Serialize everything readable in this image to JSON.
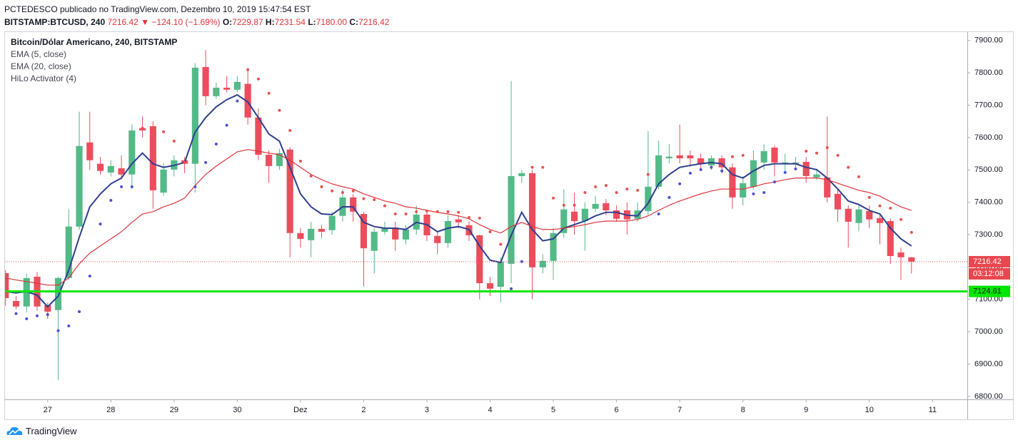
{
  "header": {
    "line1": "PCTEDESCO publicado no TradingView.com, Dezembro 10, 2019 15:47:54 EST",
    "symbol": "BITSTAMP:BTCUSD, 240",
    "last": "7216.42",
    "change": "▼ −124.10 (−1.69%)",
    "o_label": "O:",
    "o": "7229.87",
    "h_label": "H:",
    "h": "7231.54",
    "l_label": "L:",
    "l": "7180.00",
    "c_label": "C:",
    "c": "7216.42"
  },
  "footer": {
    "brand": "TradingView"
  },
  "chart_data": {
    "type": "candlestick",
    "title": "Bitcoin/Dólar Americano, 240, BITSTAMP",
    "up_color": "#53b987",
    "down_color": "#eb4d5c",
    "open": [
      7181,
      7095,
      7078,
      7170,
      7082,
      7067,
      7166,
      7325,
      7585,
      7519,
      7492,
      7505,
      7486,
      7629,
      7635,
      7430,
      7501,
      7530,
      7519,
      7818,
      7728,
      7754,
      7748,
      7766,
      7662,
      7547,
      7512,
      7563,
      7305,
      7283,
      7318,
      7314,
      7358,
      7415,
      7364,
      7250,
      7309,
      7322,
      7285,
      7316,
      7362,
      7296,
      7274,
      7347,
      7329,
      7298,
      7150,
      7139,
      7210,
      7481,
      7490,
      7199,
      7219,
      7305,
      7371,
      7342,
      7380,
      7397,
      7375,
      7375,
      7349,
      7373,
      7448,
      7536,
      7545,
      7545,
      7536,
      7514,
      7536,
      7508,
      7415,
      7448,
      7523,
      7569,
      7519,
      7519,
      7525,
      7477,
      7477,
      7426,
      7380,
      7336,
      7373,
      7351,
      7342,
      7245,
      7229.87
    ],
    "high": [
      7190,
      7110,
      7180,
      7185,
      7090,
      7170,
      7380,
      7680,
      7680,
      7540,
      7530,
      7545,
      7640,
      7665,
      7650,
      7520,
      7545,
      7540,
      7830,
      7870,
      7770,
      7790,
      7790,
      7810,
      7690,
      7560,
      7565,
      7570,
      7320,
      7340,
      7330,
      7370,
      7440,
      7425,
      7370,
      7320,
      7340,
      7340,
      7330,
      7390,
      7370,
      7310,
      7360,
      7360,
      7340,
      7300,
      7170,
      7230,
      7775,
      7500,
      7500,
      7240,
      7320,
      7440,
      7430,
      7400,
      7420,
      7410,
      7390,
      7400,
      7400,
      7620,
      7590,
      7580,
      7640,
      7560,
      7550,
      7545,
      7545,
      7520,
      7480,
      7560,
      7580,
      7575,
      7550,
      7540,
      7540,
      7500,
      7665,
      7440,
      7390,
      7390,
      7390,
      7360,
      7350,
      7260,
      7231.54
    ],
    "low": [
      7080,
      7070,
      7060,
      7065,
      7040,
      6851,
      7160,
      7315,
      7500,
      7485,
      7480,
      7470,
      7440,
      7600,
      7380,
      7420,
      7480,
      7490,
      7430,
      7700,
      7720,
      7740,
      7740,
      7640,
      7530,
      7460,
      7500,
      7230,
      7260,
      7230,
      7290,
      7300,
      7340,
      7340,
      7140,
      7180,
      7300,
      7250,
      7270,
      7300,
      7280,
      7240,
      7260,
      7320,
      7280,
      7100,
      7110,
      7090,
      7150,
      7460,
      7100,
      7180,
      7160,
      7290,
      7300,
      7250,
      7370,
      7360,
      7340,
      7300,
      7340,
      7360,
      7440,
      7520,
      7520,
      7510,
      7500,
      7500,
      7490,
      7380,
      7390,
      7440,
      7500,
      7480,
      7490,
      7500,
      7460,
      7470,
      7400,
      7340,
      7260,
      7310,
      7320,
      7270,
      7210,
      7160,
      7180
    ],
    "close": [
      7104,
      7078,
      7166,
      7078,
      7062,
      7166,
      7325,
      7574,
      7530,
      7497,
      7512,
      7486,
      7622,
      7622,
      7437,
      7501,
      7530,
      7519,
      7816,
      7728,
      7754,
      7748,
      7772,
      7662,
      7547,
      7512,
      7552,
      7305,
      7287,
      7318,
      7309,
      7358,
      7415,
      7371,
      7258,
      7309,
      7320,
      7285,
      7316,
      7362,
      7298,
      7274,
      7342,
      7338,
      7298,
      7150,
      7133,
      7217,
      7481,
      7490,
      7199,
      7219,
      7305,
      7378,
      7342,
      7380,
      7395,
      7375,
      7349,
      7347,
      7375,
      7448,
      7545,
      7541,
      7536,
      7536,
      7519,
      7536,
      7508,
      7415,
      7459,
      7530,
      7558,
      7523,
      7523,
      7523,
      7481,
      7486,
      7415,
      7378,
      7340,
      7378,
      7347,
      7336,
      7234,
      7230,
      7216.42
    ],
    "series": [
      {
        "name": "EMA (5, close)",
        "color": "#2e3f8e",
        "values": [
          7124,
          7120,
          7124,
          7113,
          7077,
          7110,
          7190,
          7292,
          7386,
          7426,
          7457,
          7475,
          7519,
          7552,
          7519,
          7508,
          7514,
          7523,
          7617,
          7662,
          7695,
          7717,
          7732,
          7710,
          7662,
          7611,
          7589,
          7508,
          7426,
          7386,
          7364,
          7362,
          7386,
          7386,
          7338,
          7325,
          7320,
          7320,
          7316,
          7338,
          7331,
          7309,
          7320,
          7325,
          7316,
          7265,
          7221,
          7214,
          7298,
          7369,
          7316,
          7281,
          7287,
          7320,
          7331,
          7342,
          7358,
          7369,
          7369,
          7360,
          7358,
          7397,
          7457,
          7486,
          7508,
          7514,
          7519,
          7523,
          7519,
          7486,
          7475,
          7497,
          7514,
          7519,
          7519,
          7519,
          7508,
          7501,
          7475,
          7441,
          7404,
          7393,
          7375,
          7364,
          7320,
          7287,
          7265
        ]
      },
      {
        "name": "EMA (20, close)",
        "color": "#e0333b",
        "values": [
          7166,
          7160,
          7155,
          7150,
          7144,
          7144,
          7166,
          7210,
          7243,
          7265,
          7287,
          7309,
          7338,
          7364,
          7371,
          7386,
          7397,
          7413,
          7452,
          7486,
          7512,
          7534,
          7556,
          7563,
          7558,
          7552,
          7547,
          7530,
          7508,
          7486,
          7470,
          7457,
          7448,
          7441,
          7426,
          7415,
          7404,
          7397,
          7386,
          7382,
          7375,
          7369,
          7364,
          7358,
          7349,
          7331,
          7316,
          7305,
          7325,
          7338,
          7325,
          7316,
          7316,
          7320,
          7325,
          7331,
          7338,
          7342,
          7342,
          7342,
          7347,
          7358,
          7375,
          7391,
          7404,
          7415,
          7426,
          7435,
          7441,
          7441,
          7441,
          7448,
          7457,
          7463,
          7470,
          7475,
          7475,
          7475,
          7470,
          7459,
          7448,
          7437,
          7430,
          7419,
          7402,
          7386,
          7375
        ]
      },
      {
        "name": "HiLo Activator (4)",
        "color_below": "#4b50d6",
        "color_above": "#e8524f",
        "values": [
          null,
          7056,
          7040,
          7049,
          7053,
          7003,
          7018,
          7062,
          7172,
          7333,
          7406,
          7448,
          7448,
          7629,
          7629,
          7618,
          7589,
          7523,
          7448,
          7523,
          7580,
          7638,
          7713,
          7810,
          7781,
          7737,
          7684,
          7622,
          7527,
          7481,
          7448,
          7435,
          7430,
          7435,
          7411,
          7408,
          7389,
          7364,
          7364,
          7371,
          7373,
          7371,
          7371,
          7369,
          7353,
          7351,
          7309,
          7270,
          7133,
          7217,
          7508,
          7508,
          7413,
          7391,
          7391,
          7430,
          7448,
          7452,
          7430,
          7441,
          7437,
          7486,
          7364,
          7415,
          7457,
          7490,
          7501,
          7508,
          7497,
          7541,
          7545,
          7426,
          7430,
          7463,
          7492,
          7503,
          7558,
          7552,
          7569,
          7545,
          7508,
          7479,
          7415,
          7389,
          7382,
          7347,
          7307
        ]
      }
    ],
    "hline": {
      "value": 7124.61,
      "color": "#00e600"
    },
    "countdown": "03:12:08",
    "xlim": [
      -0.05,
      91.3
    ],
    "xticks": [
      {
        "value": 4,
        "label": "27"
      },
      {
        "value": 10,
        "label": "28"
      },
      {
        "value": 16,
        "label": "29"
      },
      {
        "value": 22,
        "label": "30"
      },
      {
        "value": 28,
        "label": "Dez"
      },
      {
        "value": 34,
        "label": "2"
      },
      {
        "value": 40,
        "label": "3"
      },
      {
        "value": 46,
        "label": "4"
      },
      {
        "value": 52,
        "label": "5"
      },
      {
        "value": 58,
        "label": "6"
      },
      {
        "value": 64,
        "label": "7"
      },
      {
        "value": 70,
        "label": "8"
      },
      {
        "value": 76,
        "label": "9"
      },
      {
        "value": 82,
        "label": "10"
      },
      {
        "value": 88,
        "label": "11"
      }
    ],
    "ylim": [
      6791,
      7926
    ],
    "yticks": [
      {
        "value": 6800,
        "label": "6800.00"
      },
      {
        "value": 6900,
        "label": "6900.00"
      },
      {
        "value": 7000,
        "label": "7000.00"
      },
      {
        "value": 7100,
        "label": "7100.00"
      },
      {
        "value": 7200,
        "label": "7200.00"
      },
      {
        "value": 7300,
        "label": "7300.00"
      },
      {
        "value": 7400,
        "label": "7400.00"
      },
      {
        "value": 7500,
        "label": "7500.00"
      },
      {
        "value": 7600,
        "label": "7600.00"
      },
      {
        "value": 7700,
        "label": "7700.00"
      },
      {
        "value": 7800,
        "label": "7800.00"
      },
      {
        "value": 7900,
        "label": "7900.00"
      }
    ],
    "grid": true
  }
}
